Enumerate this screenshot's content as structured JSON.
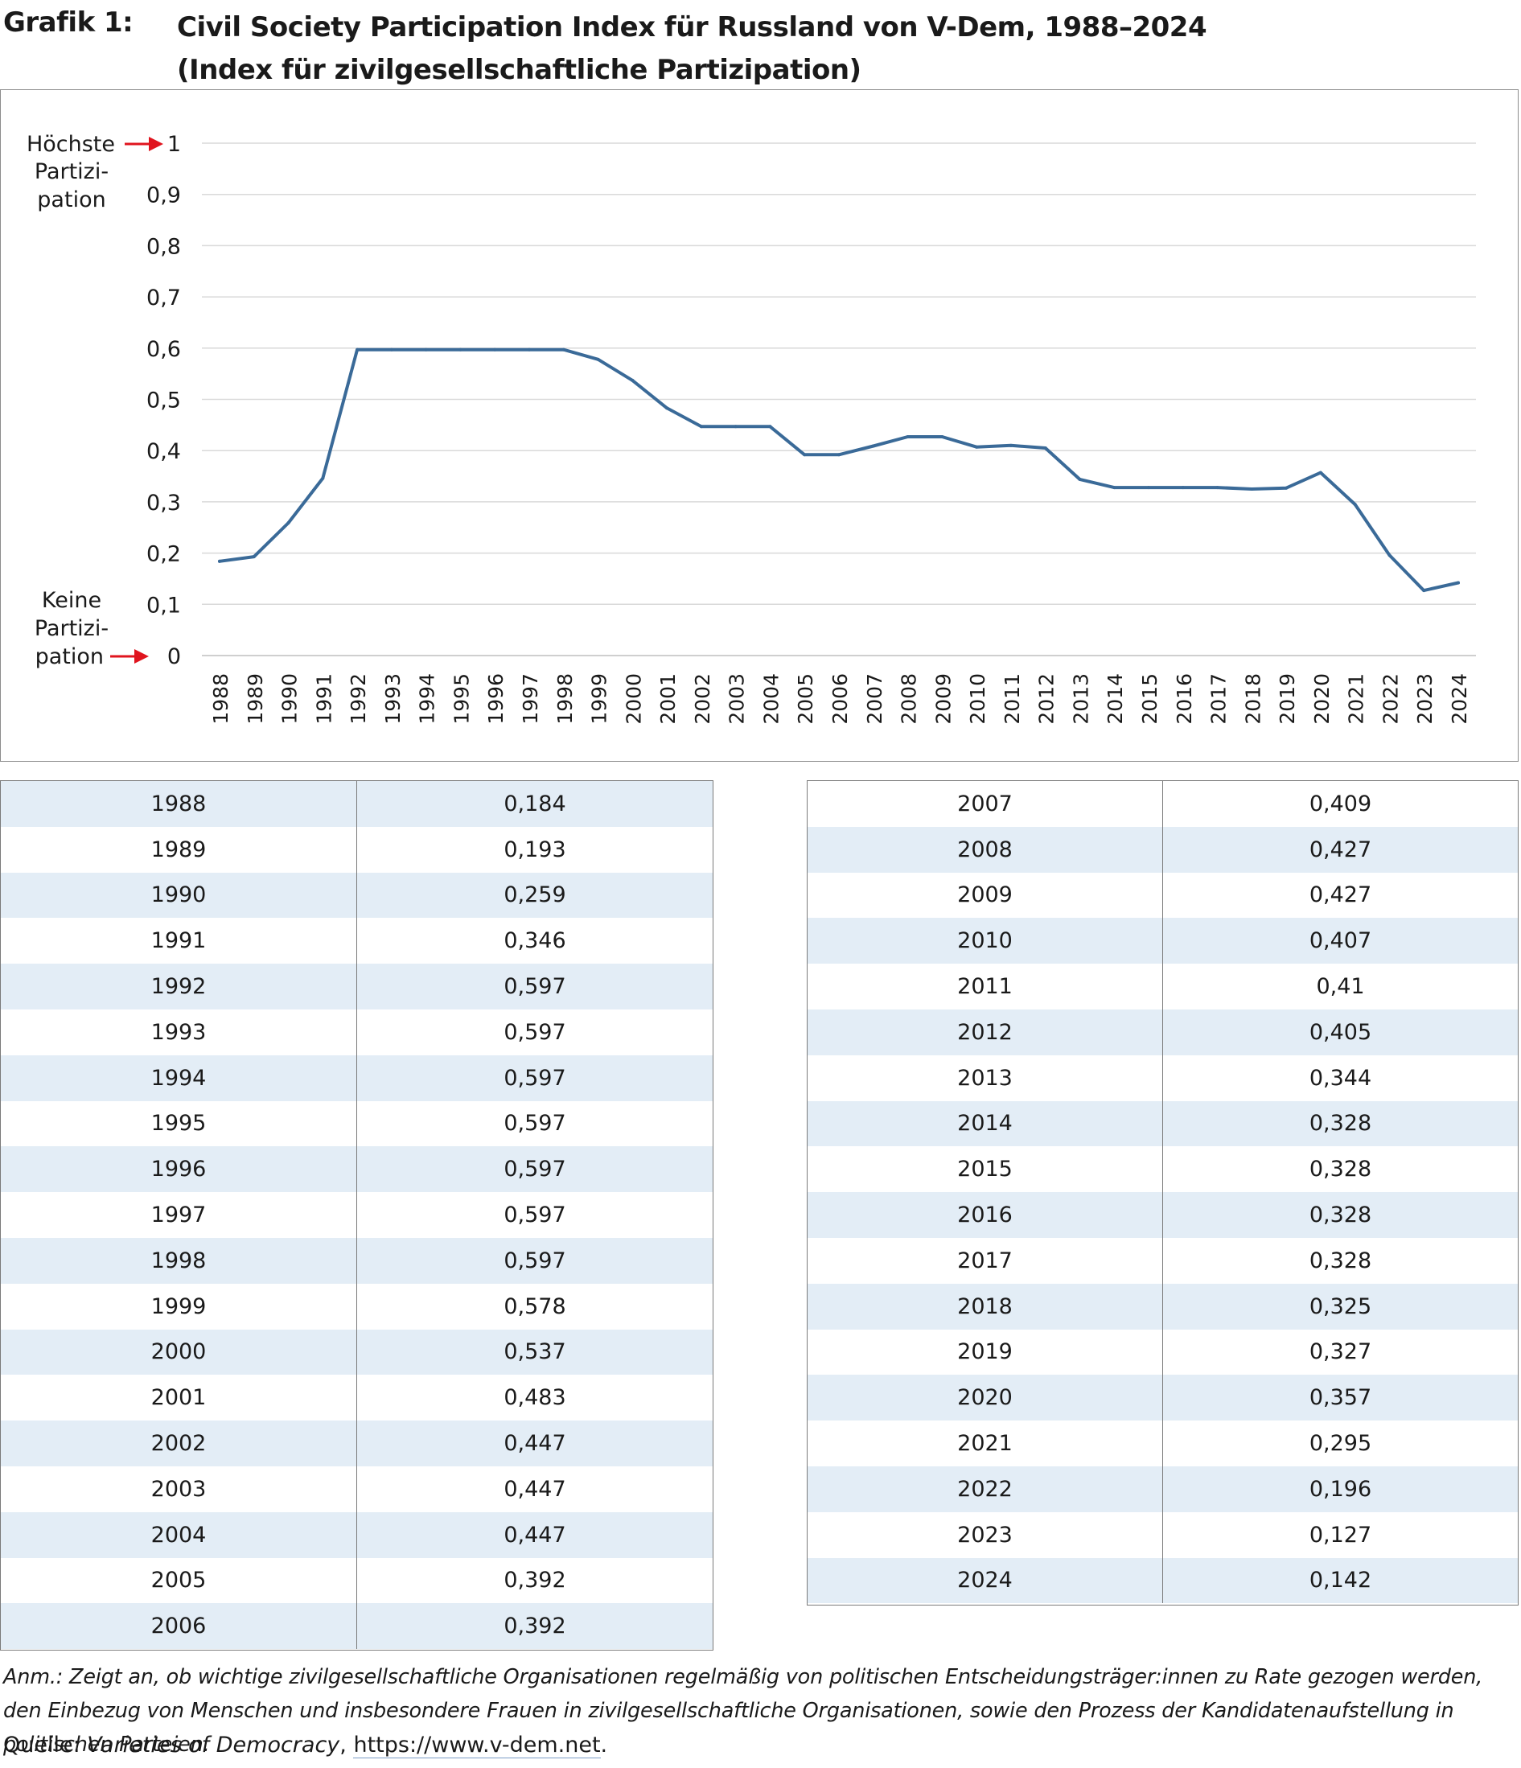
{
  "header": {
    "label": "Grafik 1:",
    "title_line1": "Civil Society Participation Index für Russland von V-Dem, 1988–2024",
    "title_line2": "(Index für zivilgesellschaftliche Partizipation)"
  },
  "annotations": {
    "top": [
      "Höchste",
      "Partizi-",
      "pation"
    ],
    "bottom": [
      "Keine",
      "Partizi-",
      "pation"
    ],
    "arrow_color": "#e0141e"
  },
  "chart_data": {
    "type": "line",
    "title": "Civil Society Participation Index für Russland von V-Dem, 1988–2024",
    "subtitle": "(Index für zivilgesellschaftliche Partizipation)",
    "xlabel": "",
    "ylabel": "",
    "ylim": [
      0,
      1
    ],
    "yticks": [
      "0",
      "0,1",
      "0,2",
      "0,3",
      "0,4",
      "0,5",
      "0,6",
      "0,7",
      "0,8",
      "0,9",
      "1"
    ],
    "grid": true,
    "legend": "none",
    "line_color": "#3a6a98",
    "categories": [
      "1988",
      "1989",
      "1990",
      "1991",
      "1992",
      "1993",
      "1994",
      "1995",
      "1996",
      "1997",
      "1998",
      "1999",
      "2000",
      "2001",
      "2002",
      "2003",
      "2004",
      "2005",
      "2006",
      "2007",
      "2008",
      "2009",
      "2010",
      "2011",
      "2012",
      "2013",
      "2014",
      "2015",
      "2016",
      "2017",
      "2018",
      "2019",
      "2020",
      "2021",
      "2022",
      "2023",
      "2024"
    ],
    "values": [
      0.184,
      0.193,
      0.259,
      0.346,
      0.597,
      0.597,
      0.597,
      0.597,
      0.597,
      0.597,
      0.597,
      0.578,
      0.537,
      0.483,
      0.447,
      0.447,
      0.447,
      0.392,
      0.392,
      0.409,
      0.427,
      0.427,
      0.407,
      0.41,
      0.405,
      0.344,
      0.328,
      0.328,
      0.328,
      0.328,
      0.325,
      0.327,
      0.357,
      0.295,
      0.196,
      0.127,
      0.142
    ]
  },
  "table": {
    "left": [
      [
        "1988",
        "0,184"
      ],
      [
        "1989",
        "0,193"
      ],
      [
        "1990",
        "0,259"
      ],
      [
        "1991",
        "0,346"
      ],
      [
        "1992",
        "0,597"
      ],
      [
        "1993",
        "0,597"
      ],
      [
        "1994",
        "0,597"
      ],
      [
        "1995",
        "0,597"
      ],
      [
        "1996",
        "0,597"
      ],
      [
        "1997",
        "0,597"
      ],
      [
        "1998",
        "0,597"
      ],
      [
        "1999",
        "0,578"
      ],
      [
        "2000",
        "0,537"
      ],
      [
        "2001",
        "0,483"
      ],
      [
        "2002",
        "0,447"
      ],
      [
        "2003",
        "0,447"
      ],
      [
        "2004",
        "0,447"
      ],
      [
        "2005",
        "0,392"
      ],
      [
        "2006",
        "0,392"
      ]
    ],
    "right": [
      [
        "2007",
        "0,409"
      ],
      [
        "2008",
        "0,427"
      ],
      [
        "2009",
        "0,427"
      ],
      [
        "2010",
        "0,407"
      ],
      [
        "2011",
        "0,41"
      ],
      [
        "2012",
        "0,405"
      ],
      [
        "2013",
        "0,344"
      ],
      [
        "2014",
        "0,328"
      ],
      [
        "2015",
        "0,328"
      ],
      [
        "2016",
        "0,328"
      ],
      [
        "2017",
        "0,328"
      ],
      [
        "2018",
        "0,325"
      ],
      [
        "2019",
        "0,327"
      ],
      [
        "2020",
        "0,357"
      ],
      [
        "2021",
        "0,295"
      ],
      [
        "2022",
        "0,196"
      ],
      [
        "2023",
        "0,127"
      ],
      [
        "2024",
        "0,142"
      ]
    ],
    "shade_color": "#e3edf6"
  },
  "footer": {
    "note": "Anm.: Zeigt an, ob wichtige zivilgesellschaftliche Organisationen regelmäßig von politischen Entscheidungsträger:innen zu Rate gezogen werden, den Einbezug von Menschen und insbesondere Frauen in zivilgesellschaftliche Organisationen, sowie den Prozess der Kandidatenaufstellung in politischen Parteien.",
    "source_prefix": "Quelle: ",
    "source_name": "Varieties of Democracy",
    "source_sep": ", ",
    "source_url": "https://www.v-dem.net",
    "source_end": "."
  }
}
